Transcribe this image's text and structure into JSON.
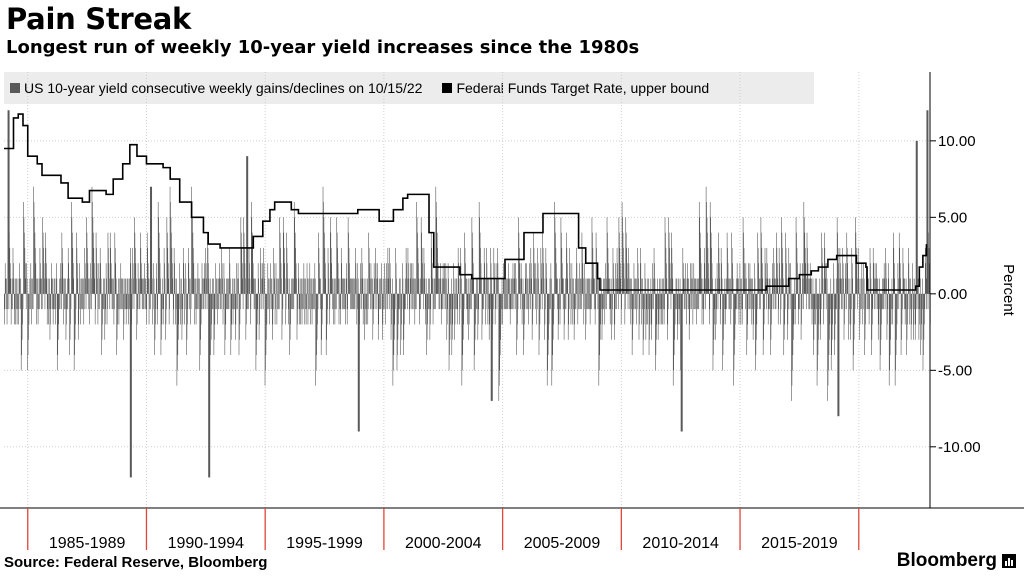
{
  "header": {
    "title": "Pain Streak",
    "subtitle": "Longest run of weekly 10-year yield increases since the 1980s"
  },
  "footer": {
    "source": "Source: Federal Reserve, Bloomberg",
    "brand": "Bloomberg"
  },
  "chart_data": {
    "type": "bar",
    "title": "Pain Streak",
    "ylabel": "Percent",
    "ylim": [
      -14,
      14.5
    ],
    "xlim": [
      1983.9,
      2022.9
    ],
    "y_ticks": [
      10,
      5,
      0,
      -5,
      -10
    ],
    "y_tick_labels": [
      "10.00",
      "5.00",
      "0.00",
      "-5.00",
      "-10.00"
    ],
    "x_groups": [
      "1985-1989",
      "1990-1994",
      "1995-1999",
      "2000-2004",
      "2005-2009",
      "2010-2014",
      "2015-2019"
    ],
    "x_group_bounds": [
      1984.9,
      1989.9,
      1994.9,
      1999.9,
      2004.9,
      2009.9,
      2014.9,
      2019.9
    ],
    "grid": true,
    "legend_position": "top-left",
    "colors": {
      "streak": "#595959",
      "fed": "#000000",
      "grid": "#cfcfcf",
      "x_ticks": "#e0473a"
    },
    "series": [
      {
        "name": "US 10-year yield consecutive weekly gains/declines on 10/15/22",
        "type": "bar",
        "notable_points": [
          {
            "x": 1984.05,
            "y": 12
          },
          {
            "x": 1989.2,
            "y": -12
          },
          {
            "x": 1990.05,
            "y": 7
          },
          {
            "x": 1992.5,
            "y": -12
          },
          {
            "x": 1994.1,
            "y": 9
          },
          {
            "x": 1998.8,
            "y": -9
          },
          {
            "x": 2004.4,
            "y": -7
          },
          {
            "x": 2012.4,
            "y": -9
          },
          {
            "x": 2019.0,
            "y": -8
          },
          {
            "x": 2022.3,
            "y": 10
          },
          {
            "x": 2022.75,
            "y": 12
          }
        ]
      },
      {
        "name": "Federal Funds Target Rate, upper bound",
        "type": "line",
        "points": [
          [
            1983.9,
            9.5
          ],
          [
            1984.2,
            9.5
          ],
          [
            1984.3,
            11.5
          ],
          [
            1984.5,
            11.75
          ],
          [
            1984.7,
            11.0
          ],
          [
            1984.9,
            9.0
          ],
          [
            1985.3,
            8.5
          ],
          [
            1985.5,
            7.75
          ],
          [
            1986.3,
            7.25
          ],
          [
            1986.6,
            6.25
          ],
          [
            1987.2,
            6.0
          ],
          [
            1987.5,
            6.75
          ],
          [
            1987.8,
            6.75
          ],
          [
            1988.2,
            6.5
          ],
          [
            1988.5,
            7.5
          ],
          [
            1988.9,
            8.5
          ],
          [
            1989.2,
            9.75
          ],
          [
            1989.5,
            9.0
          ],
          [
            1989.9,
            8.5
          ],
          [
            1990.6,
            8.25
          ],
          [
            1990.9,
            7.5
          ],
          [
            1991.3,
            6.0
          ],
          [
            1991.8,
            5.0
          ],
          [
            1992.3,
            4.0
          ],
          [
            1992.5,
            3.25
          ],
          [
            1993.0,
            3.0
          ],
          [
            1994.2,
            3.0
          ],
          [
            1994.4,
            3.75
          ],
          [
            1994.8,
            4.75
          ],
          [
            1995.1,
            5.5
          ],
          [
            1995.3,
            6.0
          ],
          [
            1995.6,
            6.0
          ],
          [
            1996.0,
            5.5
          ],
          [
            1996.3,
            5.25
          ],
          [
            1997.2,
            5.25
          ],
          [
            1998.8,
            5.5
          ],
          [
            1999.6,
            5.5
          ],
          [
            1999.7,
            4.75
          ],
          [
            1999.9,
            4.75
          ],
          [
            2000.3,
            5.5
          ],
          [
            2000.7,
            6.25
          ],
          [
            2000.9,
            6.5
          ],
          [
            2001.4,
            6.5
          ],
          [
            2001.8,
            4.0
          ],
          [
            2002.0,
            1.75
          ],
          [
            2002.9,
            1.75
          ],
          [
            2003.1,
            1.25
          ],
          [
            2003.6,
            1.0
          ],
          [
            2004.3,
            1.0
          ],
          [
            2005.0,
            2.25
          ],
          [
            2005.8,
            4.0
          ],
          [
            2006.6,
            5.25
          ],
          [
            2007.6,
            5.25
          ],
          [
            2008.1,
            3.0
          ],
          [
            2008.4,
            2.0
          ],
          [
            2008.9,
            1.0
          ],
          [
            2009.0,
            0.25
          ],
          [
            2015.95,
            0.25
          ],
          [
            2016.0,
            0.5
          ],
          [
            2016.95,
            1.0
          ],
          [
            2017.4,
            1.25
          ],
          [
            2017.9,
            1.5
          ],
          [
            2018.2,
            1.75
          ],
          [
            2018.6,
            2.25
          ],
          [
            2018.97,
            2.5
          ],
          [
            2019.6,
            2.5
          ],
          [
            2019.8,
            2.0
          ],
          [
            2020.2,
            1.75
          ],
          [
            2020.25,
            0.25
          ],
          [
            2022.15,
            0.25
          ],
          [
            2022.3,
            0.5
          ],
          [
            2022.45,
            1.75
          ],
          [
            2022.6,
            2.5
          ],
          [
            2022.75,
            3.25
          ]
        ]
      }
    ]
  }
}
